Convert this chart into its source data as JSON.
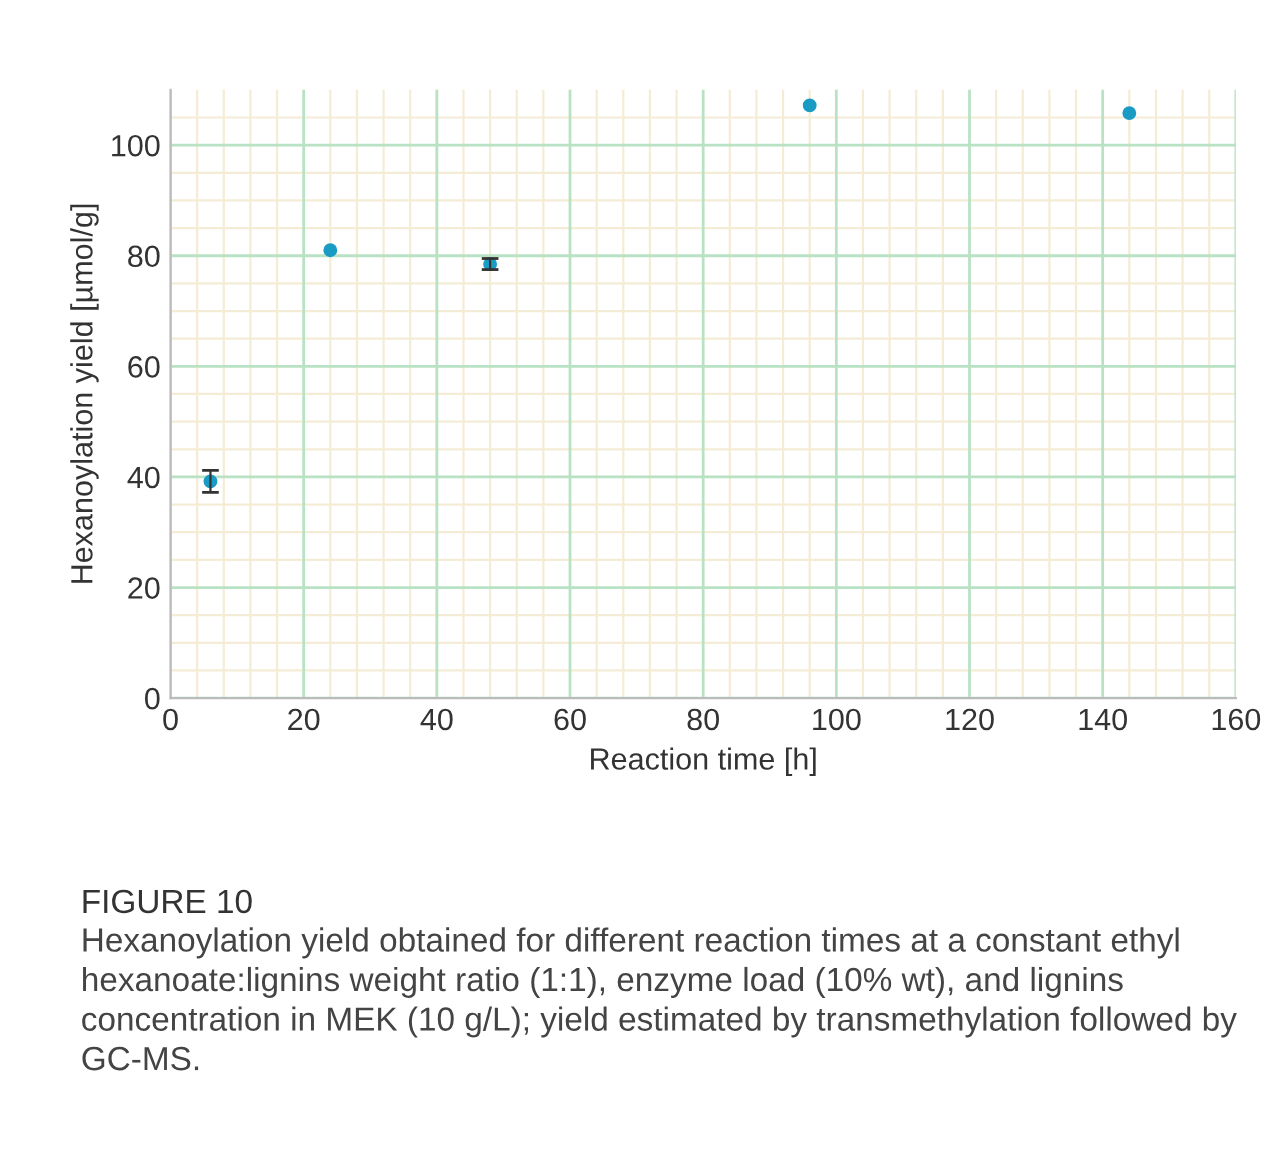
{
  "chart_data": {
    "type": "scatter",
    "title": "FIGURE 10",
    "annotations": [
      "Hexanoylation yield obtained for different reaction times at a constant ethyl hexanoate:lignins weight ratio (1:1), enzyme load (10% wt), and lignins concentration in MEK (10 g/L); yield estimated by transmethylation followed by GC-MS."
    ],
    "xlabel": "Reaction time [h]",
    "ylabel": "Hexanoylation yield [µmol/g]",
    "x": [
      6,
      24,
      48,
      96,
      144
    ],
    "series": [
      {
        "color": "#1a9bc4",
        "values": [
          39.2,
          81,
          78.5,
          107.2,
          105.8
        ],
        "errors": [
          2,
          null,
          1,
          null,
          null
        ]
      }
    ],
    "xlim": [
      0,
      160
    ],
    "xticks": [
      0,
      20,
      40,
      60,
      80,
      100,
      120,
      140,
      160
    ],
    "ylim": [
      0,
      110
    ],
    "yticks": [
      0,
      20,
      40,
      60,
      80,
      100
    ],
    "grid": true,
    "marker": "circle"
  }
}
